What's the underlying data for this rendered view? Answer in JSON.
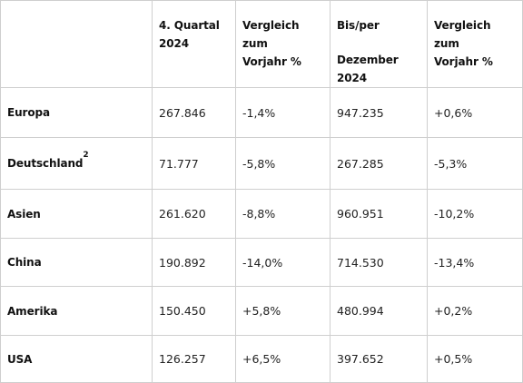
{
  "header": {
    "corner": "",
    "col1": [
      "4. Quartal",
      "2024"
    ],
    "col2": [
      "Vergleich zum",
      "Vorjahr %"
    ],
    "col3": [
      "Bis/per",
      "Dezember 2024"
    ],
    "col4": [
      "Vergleich zum",
      "Vorjahr %"
    ]
  },
  "rows": [
    {
      "region": "Europa",
      "footnote": "",
      "q4": "267.846",
      "q4_change": "-1,4%",
      "ytd": "947.235",
      "ytd_change": "+0,6%"
    },
    {
      "region": "Deutschland",
      "footnote": "2",
      "q4": "71.777",
      "q4_change": "-5,8%",
      "ytd": "267.285",
      "ytd_change": "-5,3%"
    },
    {
      "region": "Asien",
      "footnote": "",
      "q4": "261.620",
      "q4_change": "-8,8%",
      "ytd": "960.951",
      "ytd_change": "-10,2%"
    },
    {
      "region": "China",
      "footnote": "",
      "q4": "190.892",
      "q4_change": "-14,0%",
      "ytd": "714.530",
      "ytd_change": "-13,4%"
    },
    {
      "region": "Amerika",
      "footnote": "",
      "q4": "150.450",
      "q4_change": "+5,8%",
      "ytd": "480.994",
      "ytd_change": "+0,2%"
    },
    {
      "region": "USA",
      "footnote": "",
      "q4": "126.257",
      "q4_change": "+6,5%",
      "ytd": "397.652",
      "ytd_change": "+0,5%"
    }
  ]
}
